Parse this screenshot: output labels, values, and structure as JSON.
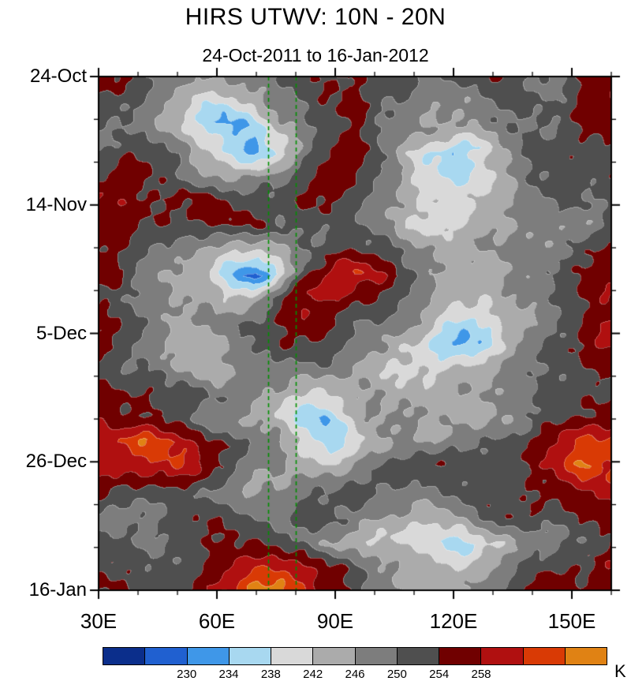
{
  "header": {
    "title": "HIRS UTWV: 10N - 20N",
    "subtitle": "24-Oct-2011 to 16-Jan-2012"
  },
  "axes": {
    "y": {
      "ticks": [
        {
          "label": "24-Oct",
          "day": 0
        },
        {
          "label": "14-Nov",
          "day": 21
        },
        {
          "label": "5-Dec",
          "day": 42
        },
        {
          "label": "26-Dec",
          "day": 63
        },
        {
          "label": "16-Jan",
          "day": 84
        }
      ],
      "minor_step_days": 7,
      "range_days": [
        0,
        84
      ]
    },
    "x": {
      "ticks": [
        {
          "label": "30E",
          "lon": 30
        },
        {
          "label": "60E",
          "lon": 60
        },
        {
          "label": "90E",
          "lon": 90
        },
        {
          "label": "120E",
          "lon": 120
        },
        {
          "label": "150E",
          "lon": 150
        }
      ],
      "minor_step_deg": 10,
      "range_deg": [
        30,
        160
      ]
    }
  },
  "reference_lines": {
    "style": "dashed",
    "color": "#009000",
    "x_values": [
      73,
      80
    ]
  },
  "colorbar": {
    "unit": "K",
    "levels": [
      226,
      230,
      234,
      238,
      242,
      246,
      250,
      254,
      258,
      262,
      266
    ],
    "tick_labels": [
      "230",
      "234",
      "238",
      "242",
      "246",
      "250",
      "254",
      "258"
    ],
    "colors": [
      "#0b2e8b",
      "#2060d0",
      "#3f97e8",
      "#a8d8f0",
      "#d9d9d9",
      "#ababab",
      "#7d7d7d",
      "#4f4f4f",
      "#700000",
      "#b01010",
      "#d93a05",
      "#e08214"
    ]
  },
  "chart_data": {
    "type": "heatmap",
    "title": "HIRS UTWV: 10N - 20N",
    "subtitle": "24-Oct-2011 to 16-Jan-2012",
    "latitude_band": "10N - 20N",
    "value_unit": "K",
    "lon_range": [
      30,
      160
    ],
    "time_range": [
      "24-Oct-2011",
      "16-Jan-2012"
    ],
    "x": [
      30,
      36.5,
      43,
      49.5,
      56,
      62.5,
      69,
      75.5,
      82,
      88.5,
      95,
      101.5,
      108,
      114.5,
      121,
      127.5,
      134,
      140.5,
      147,
      153.5,
      160
    ],
    "y_days": [
      0,
      4,
      8,
      12,
      16,
      20,
      24,
      28,
      32,
      36,
      40,
      44,
      48,
      52,
      56,
      60,
      64,
      68,
      72,
      76,
      80,
      84
    ],
    "values": [
      [
        256,
        254,
        250,
        248,
        246,
        246,
        250,
        250,
        252,
        254,
        256,
        252,
        250,
        248,
        250,
        252,
        254,
        250,
        250,
        256,
        258
      ],
      [
        254,
        252,
        248,
        246,
        242,
        240,
        244,
        248,
        250,
        252,
        255,
        252,
        248,
        246,
        248,
        250,
        252,
        250,
        252,
        256,
        256
      ],
      [
        252,
        250,
        248,
        244,
        238,
        231,
        234,
        244,
        248,
        252,
        255,
        250,
        248,
        246,
        246,
        248,
        250,
        248,
        250,
        254,
        256
      ],
      [
        250,
        254,
        252,
        248,
        242,
        236,
        231,
        240,
        250,
        255,
        256,
        252,
        244,
        237,
        233,
        238,
        246,
        250,
        252,
        254,
        254
      ],
      [
        254,
        256,
        254,
        250,
        246,
        244,
        246,
        248,
        252,
        256,
        254,
        250,
        246,
        240,
        236,
        240,
        246,
        250,
        252,
        252,
        252
      ],
      [
        258,
        258,
        256,
        254,
        256,
        254,
        252,
        250,
        254,
        256,
        252,
        248,
        246,
        242,
        240,
        242,
        246,
        248,
        250,
        250,
        252
      ],
      [
        256,
        256,
        254,
        252,
        254,
        256,
        254,
        250,
        252,
        254,
        250,
        246,
        242,
        238,
        240,
        244,
        246,
        248,
        246,
        248,
        252
      ],
      [
        254,
        252,
        250,
        248,
        246,
        244,
        242,
        246,
        250,
        252,
        252,
        250,
        248,
        246,
        244,
        246,
        248,
        250,
        248,
        252,
        254
      ],
      [
        256,
        252,
        248,
        246,
        242,
        234,
        228,
        238,
        250,
        258,
        263,
        259,
        253,
        248,
        246,
        244,
        246,
        248,
        250,
        254,
        256
      ],
      [
        254,
        250,
        248,
        246,
        244,
        242,
        244,
        252,
        258,
        260,
        258,
        254,
        250,
        246,
        244,
        242,
        244,
        248,
        252,
        256,
        258
      ],
      [
        256,
        252,
        248,
        246,
        246,
        248,
        252,
        256,
        258,
        254,
        250,
        248,
        246,
        242,
        238,
        240,
        244,
        248,
        252,
        256,
        258
      ],
      [
        256,
        252,
        248,
        246,
        244,
        246,
        250,
        254,
        254,
        250,
        248,
        246,
        242,
        236,
        233,
        238,
        244,
        248,
        252,
        256,
        258
      ],
      [
        254,
        250,
        248,
        246,
        244,
        244,
        246,
        248,
        250,
        248,
        246,
        244,
        242,
        240,
        242,
        244,
        246,
        248,
        250,
        254,
        256
      ],
      [
        256,
        254,
        252,
        250,
        252,
        250,
        248,
        246,
        244,
        242,
        244,
        246,
        244,
        242,
        244,
        246,
        248,
        250,
        252,
        254,
        254
      ],
      [
        258,
        256,
        254,
        252,
        250,
        248,
        246,
        242,
        237,
        233,
        240,
        246,
        248,
        246,
        244,
        246,
        248,
        250,
        252,
        254,
        256
      ],
      [
        260,
        263,
        267,
        262,
        258,
        254,
        250,
        246,
        240,
        236,
        242,
        246,
        248,
        246,
        248,
        250,
        252,
        254,
        258,
        263,
        265
      ],
      [
        258,
        260,
        262,
        260,
        256,
        252,
        248,
        246,
        244,
        246,
        248,
        250,
        252,
        254,
        252,
        250,
        252,
        256,
        260,
        267,
        264
      ],
      [
        254,
        252,
        254,
        252,
        250,
        248,
        246,
        246,
        248,
        250,
        252,
        250,
        248,
        250,
        252,
        254,
        252,
        254,
        256,
        256,
        258
      ],
      [
        250,
        248,
        250,
        252,
        254,
        252,
        250,
        248,
        250,
        252,
        250,
        248,
        246,
        244,
        246,
        248,
        252,
        254,
        252,
        254,
        256
      ],
      [
        252,
        250,
        248,
        250,
        252,
        254,
        254,
        252,
        250,
        246,
        244,
        242,
        240,
        237,
        235,
        240,
        244,
        248,
        250,
        252,
        254
      ],
      [
        254,
        252,
        250,
        252,
        256,
        258,
        260,
        262,
        258,
        254,
        250,
        246,
        244,
        242,
        244,
        246,
        248,
        252,
        254,
        254,
        256
      ],
      [
        256,
        254,
        252,
        254,
        258,
        262,
        266,
        267,
        260,
        256,
        252,
        248,
        246,
        244,
        246,
        248,
        250,
        254,
        256,
        254,
        256
      ]
    ]
  }
}
